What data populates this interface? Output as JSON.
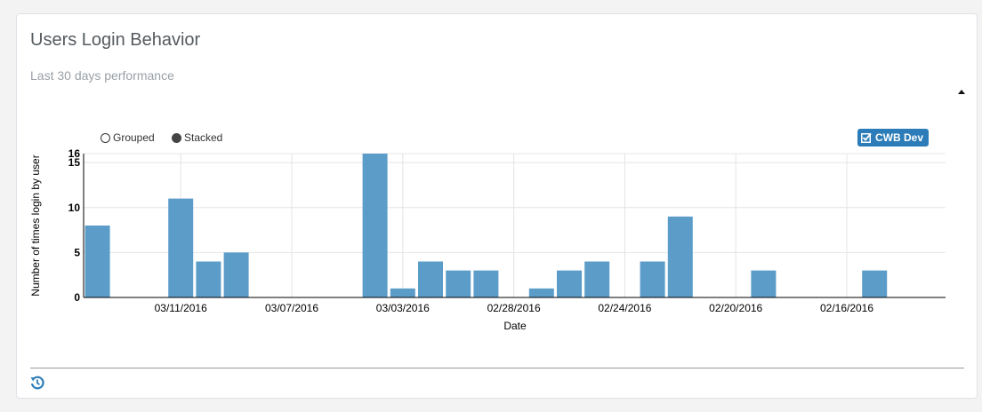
{
  "widget": {
    "title": "Users Login Behavior",
    "subtitle": "Last 30 days performance",
    "collapse_icon": "caret-up-icon",
    "footer_icon": "history-icon"
  },
  "controls": {
    "grouped_label": "Grouped",
    "stacked_label": "Stacked",
    "selected": "Stacked"
  },
  "legend": {
    "series_label": "CWB Dev",
    "series_icon": "checkbox-checked-icon",
    "color": "#2b7cb8"
  },
  "chart_data": {
    "type": "bar",
    "xlabel": "Date",
    "ylabel": "Number of times login by user",
    "ylim": [
      0,
      16
    ],
    "yticks": [
      0,
      5,
      10,
      15,
      16
    ],
    "grid": true,
    "bar_color": "#5b9cc9",
    "x_tick_labels": [
      "03/11/2016",
      "03/07/2016",
      "03/03/2016",
      "02/28/2016",
      "02/24/2016",
      "02/20/2016",
      "02/16/2016"
    ],
    "series": [
      {
        "name": "CWB Dev",
        "values": [
          8,
          0,
          0,
          11,
          4,
          5,
          0,
          0,
          0,
          0,
          16,
          1,
          4,
          3,
          3,
          0,
          1,
          3,
          4,
          0,
          4,
          9,
          0,
          0,
          3,
          0,
          0,
          0,
          3,
          0
        ]
      }
    ]
  }
}
